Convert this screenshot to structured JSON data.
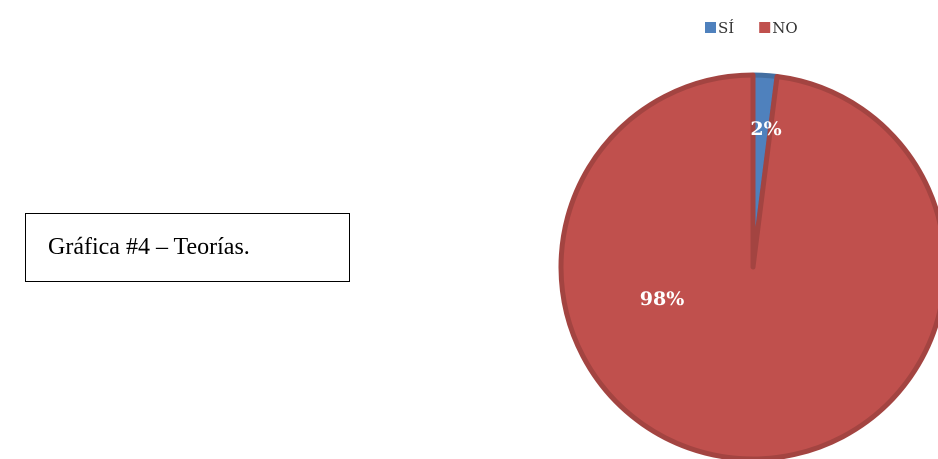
{
  "chart_data": {
    "type": "pie",
    "caption": "Gráfica #4 – Teorías.",
    "categories": [
      "SÍ",
      "NO"
    ],
    "values": [
      2,
      98
    ],
    "value_labels": [
      "2%",
      "98%"
    ],
    "colors": [
      "#4f81bd",
      "#c0504d"
    ],
    "legend": "top"
  }
}
